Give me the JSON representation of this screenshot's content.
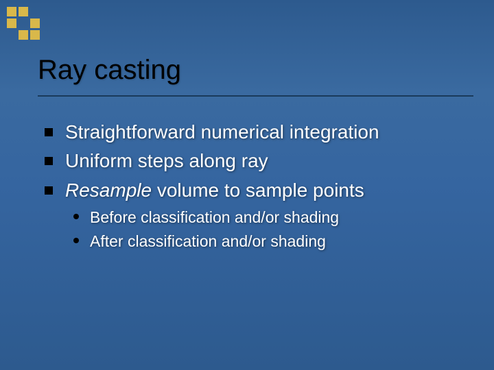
{
  "corner": {
    "filled_color": "#d9b84a",
    "empty_color": "transparent",
    "pattern": [
      1,
      1,
      0,
      1,
      0,
      1,
      0,
      1,
      1
    ]
  },
  "title": "Ray casting",
  "bullets": [
    {
      "text_plain": "Straightforward numerical integration",
      "italic_word": null
    },
    {
      "text_plain": "Uniform steps along ray",
      "italic_word": null
    },
    {
      "text_plain": " volume to sample points",
      "italic_word": "Resample"
    }
  ],
  "sub_bullets": [
    "Before classification and/or shading",
    "After classification and/or shading"
  ],
  "colors": {
    "background_top": "#2d5a8e",
    "background_mid": "#3565a0",
    "title_color": "#000000",
    "bullet_color": "#000000",
    "text_color": "#ffffff",
    "line_color": "#1a3a5a"
  },
  "typography": {
    "title_fontsize": 40,
    "bullet_fontsize": 28,
    "sub_fontsize": 23,
    "font_family": "Arial"
  }
}
